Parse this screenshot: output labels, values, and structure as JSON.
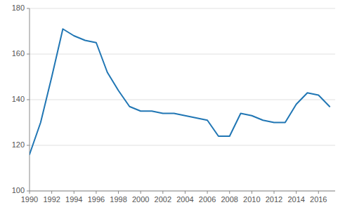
{
  "chart_data": {
    "type": "line",
    "x": [
      1990,
      1991,
      1992,
      1993,
      1994,
      1995,
      1996,
      1997,
      1998,
      1999,
      2000,
      2001,
      2002,
      2003,
      2004,
      2005,
      2006,
      2007,
      2008,
      2009,
      2010,
      2011,
      2012,
      2013,
      2014,
      2015,
      2016,
      2017
    ],
    "values": [
      116,
      130,
      150,
      171,
      168,
      166,
      165,
      152,
      144,
      137,
      135,
      135,
      134,
      134,
      133,
      132,
      131,
      124,
      124,
      134,
      133,
      131,
      130,
      130,
      138,
      143,
      142,
      137
    ],
    "color": "#2076b4",
    "xlim": [
      1990,
      2017.5
    ],
    "xticks": [
      1990,
      1992,
      1994,
      1996,
      1998,
      2000,
      2002,
      2004,
      2006,
      2008,
      2010,
      2012,
      2014,
      2016
    ],
    "ylim": [
      100,
      180
    ],
    "yticks": [
      100,
      120,
      140,
      160,
      180
    ],
    "grid": true
  }
}
